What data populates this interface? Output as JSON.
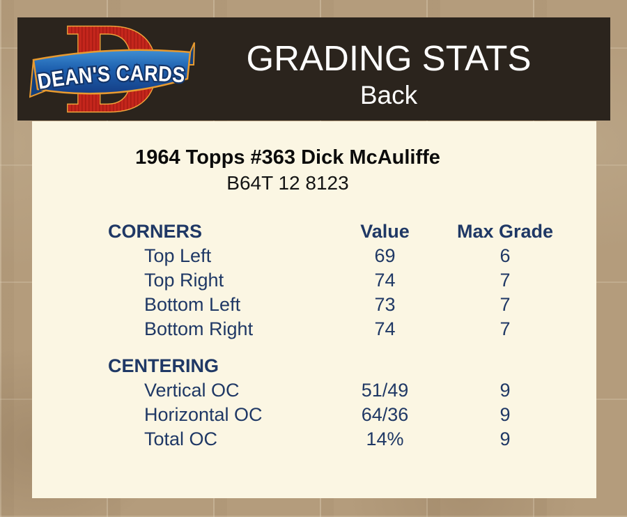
{
  "header": {
    "title": "GRADING STATS",
    "subtitle": "Back",
    "logo": {
      "brand": "DEAN'S CARDS",
      "monogram": "D"
    }
  },
  "card": {
    "title": "1964 Topps #363 Dick McAuliffe",
    "serial": "B64T 12 8123"
  },
  "table": {
    "columns": [
      "Value",
      "Max Grade"
    ],
    "sections": [
      {
        "name": "CORNERS",
        "rows": [
          {
            "label": "Top Left",
            "value": "69",
            "max": "6"
          },
          {
            "label": "Top Right",
            "value": "74",
            "max": "7"
          },
          {
            "label": "Bottom Left",
            "value": "73",
            "max": "7"
          },
          {
            "label": "Bottom Right",
            "value": "74",
            "max": "7"
          }
        ]
      },
      {
        "name": "CENTERING",
        "rows": [
          {
            "label": "Vertical OC",
            "value": "51/49",
            "max": "9"
          },
          {
            "label": "Horizontal OC",
            "value": "64/36",
            "max": "9"
          },
          {
            "label": "Total OC",
            "value": "14%",
            "max": "9"
          }
        ]
      }
    ]
  },
  "colors": {
    "page_background_tan": "#b49c7c",
    "header_background": "#2b241d",
    "panel_background": "#fbf6e3",
    "table_text_navy": "#1f3865",
    "header_text": "#ffffff",
    "card_title_text": "#0b0b0b",
    "logo_red": "#c4261c",
    "logo_orange_outline": "#f0a23a",
    "logo_ribbon_blue": "#1d5fae",
    "logo_brand_text": "#ffffff"
  }
}
